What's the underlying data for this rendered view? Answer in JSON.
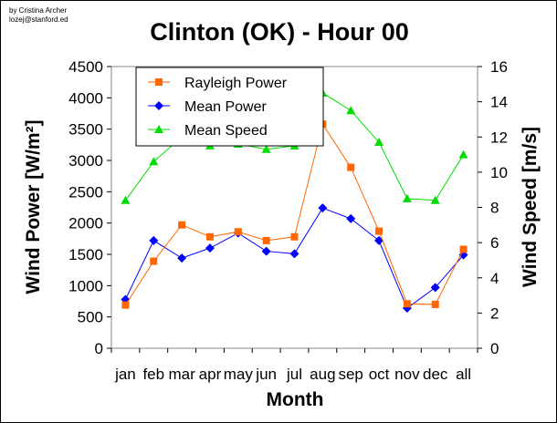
{
  "credit": [
    "by Cristina Archer",
    "lozej@stanford.ed"
  ],
  "chart_data": {
    "type": "line",
    "title": "Clinton (OK) - Hour 00",
    "xlabel": "Month",
    "ylabel": "Wind Power [W/m²]",
    "ylabel_right": "Wind Speed [m/s]",
    "categories": [
      "jan",
      "feb",
      "mar",
      "apr",
      "may",
      "jun",
      "jul",
      "aug",
      "sep",
      "oct",
      "nov",
      "dec",
      "all"
    ],
    "ylim": [
      0,
      4500
    ],
    "yticks": [
      "0",
      "500",
      "1000",
      "1500",
      "2000",
      "2500",
      "3000",
      "3500",
      "4000",
      "4500"
    ],
    "ylim_right": [
      0,
      16
    ],
    "yticks_right": [
      "0",
      "2",
      "4",
      "6",
      "8",
      "10",
      "12",
      "14",
      "16"
    ],
    "legend_position": "top-left",
    "series": [
      {
        "name": "Rayleigh Power",
        "axis": "left",
        "marker": "square",
        "color": "#ff6600",
        "values": [
          690,
          1390,
          1970,
          1780,
          1860,
          1720,
          1780,
          3580,
          2890,
          1870,
          710,
          700,
          1580
        ]
      },
      {
        "name": "Mean Power",
        "axis": "left",
        "marker": "diamond",
        "color": "#0000ff",
        "values": [
          780,
          1720,
          1440,
          1600,
          1840,
          1550,
          1510,
          2240,
          2070,
          1720,
          640,
          970,
          1490
        ]
      },
      {
        "name": "Mean Speed",
        "axis": "right",
        "marker": "triangle",
        "color": "#00dd00",
        "values": [
          8.4,
          10.6,
          12.0,
          11.5,
          11.6,
          11.3,
          11.5,
          14.5,
          13.5,
          11.7,
          8.5,
          8.4,
          11.0
        ]
      }
    ]
  }
}
